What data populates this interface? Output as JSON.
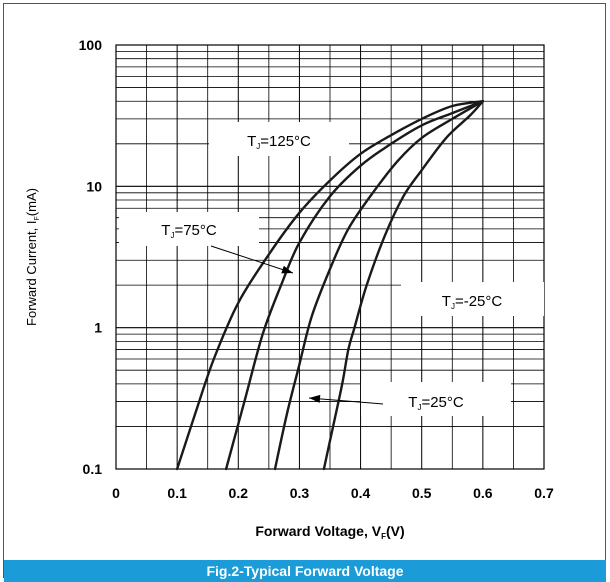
{
  "caption": "Fig.2-Typical Forward Voltage",
  "colors": {
    "caption_bg": "#1b9bd7",
    "caption_text": "#ffffff",
    "curve": "#1a1a1a",
    "grid": "#000000"
  },
  "chart_data": {
    "type": "line",
    "title": "Fig.2-Typical Forward Voltage",
    "xlabel": {
      "main": "Forward Voltage, V",
      "sub": "F",
      "tail": "(V)"
    },
    "ylabel": {
      "main": "Forward Current, I",
      "sub": "F",
      "tail": "(mA)"
    },
    "xlim": [
      0,
      0.7
    ],
    "ylim": [
      0.1,
      100
    ],
    "yscale": "log",
    "grid": true,
    "x_ticks": [
      "0",
      "0.1",
      "0.2",
      "0.3",
      "0.4",
      "0.5",
      "0.6",
      "0.7"
    ],
    "y_ticks": [
      "0.1",
      "1",
      "10",
      "100"
    ],
    "series": [
      {
        "label": {
          "pre": "T",
          "sub": "J",
          "post": "=125°C"
        },
        "points": [
          [
            0.1,
            0.1
          ],
          [
            0.13,
            0.25
          ],
          [
            0.16,
            0.6
          ],
          [
            0.2,
            1.5
          ],
          [
            0.25,
            3.3
          ],
          [
            0.3,
            6.5
          ],
          [
            0.35,
            11
          ],
          [
            0.4,
            17
          ],
          [
            0.45,
            23
          ],
          [
            0.5,
            30
          ],
          [
            0.55,
            37
          ],
          [
            0.6,
            40
          ]
        ]
      },
      {
        "label": {
          "pre": "T",
          "sub": "J",
          "post": "=75°C"
        },
        "points": [
          [
            0.18,
            0.1
          ],
          [
            0.21,
            0.3
          ],
          [
            0.24,
            0.9
          ],
          [
            0.27,
            2.0
          ],
          [
            0.3,
            4.0
          ],
          [
            0.35,
            8.5
          ],
          [
            0.4,
            14
          ],
          [
            0.45,
            20
          ],
          [
            0.5,
            27
          ],
          [
            0.55,
            33
          ],
          [
            0.6,
            40
          ]
        ]
      },
      {
        "label": {
          "pre": "T",
          "sub": "J",
          "post": "=25°C"
        },
        "points": [
          [
            0.26,
            0.1
          ],
          [
            0.28,
            0.25
          ],
          [
            0.3,
            0.55
          ],
          [
            0.32,
            1.2
          ],
          [
            0.35,
            2.6
          ],
          [
            0.38,
            5.0
          ],
          [
            0.42,
            9.0
          ],
          [
            0.46,
            15
          ],
          [
            0.5,
            22
          ],
          [
            0.55,
            30
          ],
          [
            0.6,
            40
          ]
        ]
      },
      {
        "label": {
          "pre": "T",
          "sub": "J",
          "post": "=-25°C"
        },
        "points": [
          [
            0.34,
            0.1
          ],
          [
            0.355,
            0.2
          ],
          [
            0.37,
            0.4
          ],
          [
            0.38,
            0.7
          ],
          [
            0.39,
            1.0
          ],
          [
            0.41,
            2.0
          ],
          [
            0.44,
            4.5
          ],
          [
            0.47,
            8.5
          ],
          [
            0.5,
            13
          ],
          [
            0.54,
            22
          ],
          [
            0.58,
            32
          ],
          [
            0.6,
            40
          ]
        ]
      }
    ]
  }
}
